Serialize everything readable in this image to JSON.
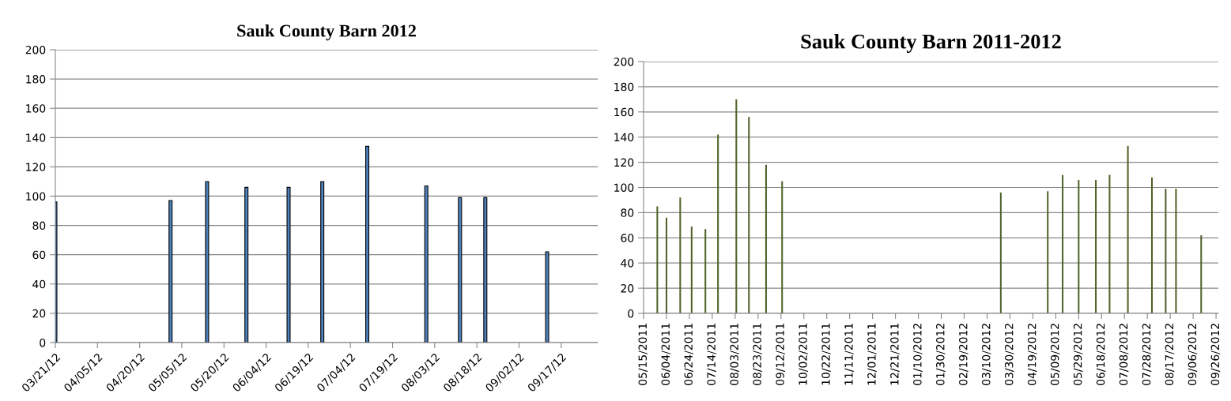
{
  "chart_data": [
    {
      "type": "bar",
      "title": "Sauk County Barn 2012",
      "x": [
        "2012-03-21",
        "2012-05-01",
        "2012-05-14",
        "2012-05-28",
        "2012-06-12",
        "2012-06-24",
        "2012-07-10",
        "2012-07-31",
        "2012-08-12",
        "2012-08-21",
        "2012-09-12"
      ],
      "values": [
        96,
        97,
        110,
        106,
        106,
        110,
        134,
        107,
        99,
        99,
        62
      ],
      "color": "#4f81bd",
      "xlim": [
        "2012-03-21",
        "2012-09-30"
      ],
      "xticks": [
        {
          "value": "2012-03-21",
          "label": "03/21/12"
        },
        {
          "value": "2012-04-05",
          "label": "04/05/12"
        },
        {
          "value": "2012-04-20",
          "label": "04/20/12"
        },
        {
          "value": "2012-05-05",
          "label": "05/05/12"
        },
        {
          "value": "2012-05-20",
          "label": "05/20/12"
        },
        {
          "value": "2012-06-04",
          "label": "06/04/12"
        },
        {
          "value": "2012-06-19",
          "label": "06/19/12"
        },
        {
          "value": "2012-07-04",
          "label": "07/04/12"
        },
        {
          "value": "2012-07-19",
          "label": "07/19/12"
        },
        {
          "value": "2012-08-03",
          "label": "08/03/12"
        },
        {
          "value": "2012-08-18",
          "label": "08/18/12"
        },
        {
          "value": "2012-09-02",
          "label": "09/02/12"
        },
        {
          "value": "2012-09-17",
          "label": "09/17/12"
        }
      ],
      "ylim": [
        0,
        200
      ],
      "yticks": [
        0,
        20,
        40,
        60,
        80,
        100,
        120,
        140,
        160,
        180,
        200
      ],
      "grid": "y"
    },
    {
      "type": "bar",
      "title": "Sauk County Barn 2011-2012",
      "x": [
        "2011-05-27",
        "2011-06-04",
        "2011-06-16",
        "2011-06-26",
        "2011-07-08",
        "2011-07-19",
        "2011-08-04",
        "2011-08-15",
        "2011-08-30",
        "2011-09-13",
        "2012-03-22",
        "2012-05-02",
        "2012-05-15",
        "2012-05-29",
        "2012-06-13",
        "2012-06-25",
        "2012-07-11",
        "2012-08-01",
        "2012-08-13",
        "2012-08-22",
        "2012-09-13"
      ],
      "values": [
        85,
        76,
        92,
        69,
        67,
        142,
        170,
        156,
        118,
        105,
        96,
        97,
        110,
        106,
        106,
        110,
        133,
        108,
        99,
        99,
        62
      ],
      "color": "#4f6228",
      "xlim": [
        "2011-05-15",
        "2012-09-28"
      ],
      "xticks": [
        {
          "value": "2011-05-15",
          "label": "05/15/2011"
        },
        {
          "value": "2011-06-04",
          "label": "06/04/2011"
        },
        {
          "value": "2011-06-24",
          "label": "06/24/2011"
        },
        {
          "value": "2011-07-14",
          "label": "07/14/2011"
        },
        {
          "value": "2011-08-03",
          "label": "08/03/2011"
        },
        {
          "value": "2011-08-23",
          "label": "08/23/2011"
        },
        {
          "value": "2011-09-12",
          "label": "09/12/2011"
        },
        {
          "value": "2011-10-02",
          "label": "10/02/2011"
        },
        {
          "value": "2011-10-22",
          "label": "10/22/2011"
        },
        {
          "value": "2011-11-11",
          "label": "11/11/2011"
        },
        {
          "value": "2011-12-01",
          "label": "12/01/2011"
        },
        {
          "value": "2011-12-21",
          "label": "12/21/2011"
        },
        {
          "value": "2012-01-10",
          "label": "01/10/2012"
        },
        {
          "value": "2012-01-30",
          "label": "01/30/2012"
        },
        {
          "value": "2012-02-19",
          "label": "02/19/2012"
        },
        {
          "value": "2012-03-10",
          "label": "03/10/2012"
        },
        {
          "value": "2012-03-30",
          "label": "03/30/2012"
        },
        {
          "value": "2012-04-19",
          "label": "04/19/2012"
        },
        {
          "value": "2012-05-09",
          "label": "05/09/2012"
        },
        {
          "value": "2012-05-29",
          "label": "05/29/2012"
        },
        {
          "value": "2012-06-18",
          "label": "06/18/2012"
        },
        {
          "value": "2012-07-08",
          "label": "07/08/2012"
        },
        {
          "value": "2012-07-28",
          "label": "07/28/2012"
        },
        {
          "value": "2012-08-17",
          "label": "08/17/2012"
        },
        {
          "value": "2012-09-06",
          "label": "09/06/2012"
        },
        {
          "value": "2012-09-26",
          "label": "09/26/2012"
        }
      ],
      "ylim": [
        0,
        200
      ],
      "yticks": [
        0,
        20,
        40,
        60,
        80,
        100,
        120,
        140,
        160,
        180,
        200
      ],
      "grid": "y"
    }
  ]
}
